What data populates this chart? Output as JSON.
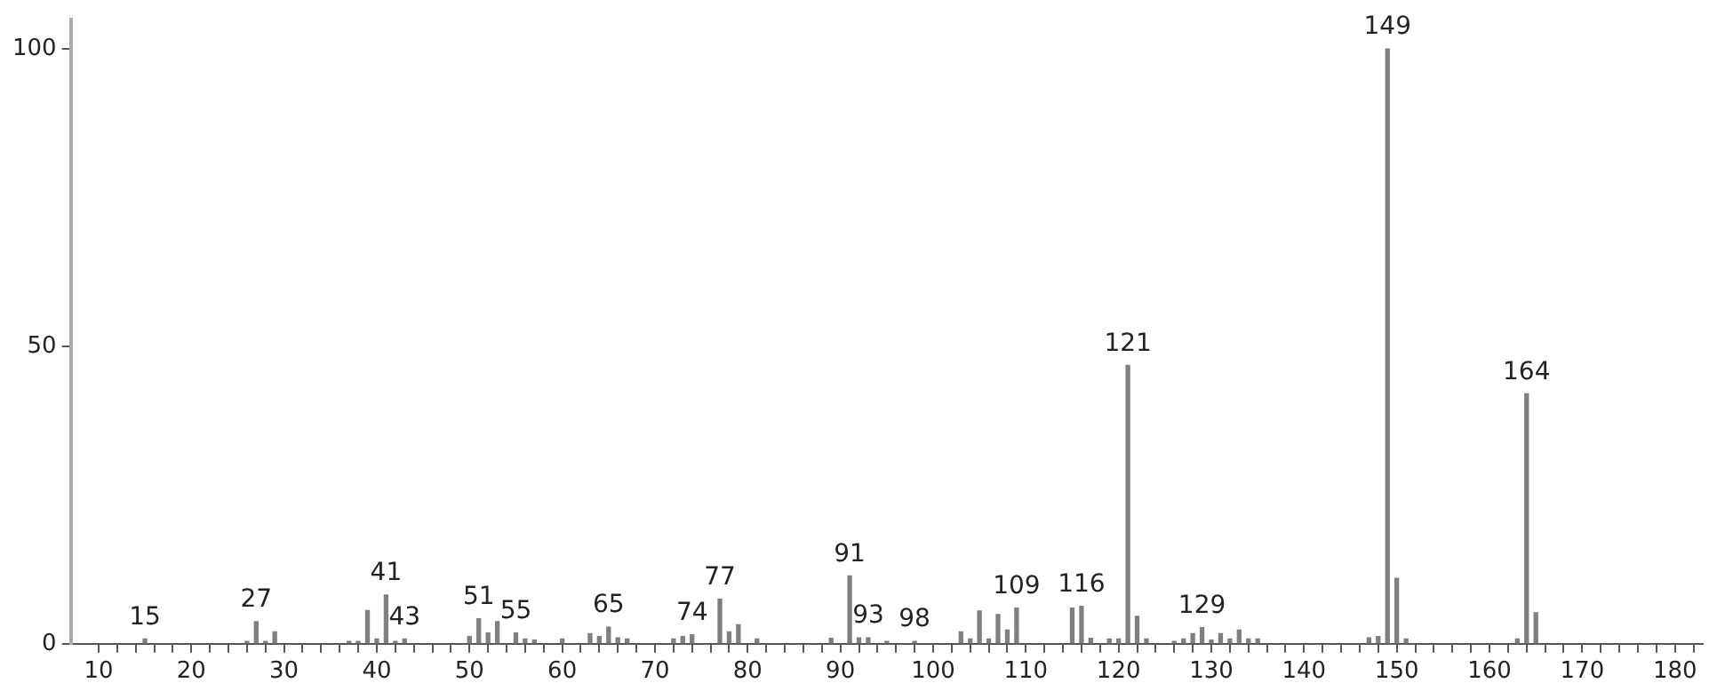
{
  "chart_data": {
    "type": "bar",
    "color": "#7f7f7f",
    "x": [
      15,
      26,
      27,
      28,
      29,
      37,
      38,
      39,
      40,
      41,
      42,
      43,
      50,
      51,
      52,
      53,
      55,
      56,
      57,
      60,
      63,
      64,
      65,
      66,
      67,
      72,
      73,
      74,
      77,
      78,
      79,
      81,
      89,
      91,
      92,
      93,
      95,
      98,
      103,
      104,
      105,
      106,
      107,
      108,
      109,
      115,
      116,
      117,
      119,
      120,
      121,
      122,
      123,
      126,
      127,
      128,
      129,
      130,
      131,
      132,
      133,
      134,
      135,
      147,
      148,
      149,
      150,
      151,
      163,
      164,
      165
    ],
    "values": [
      0.8,
      0.4,
      3.7,
      0.4,
      2.0,
      0.4,
      0.4,
      5.6,
      0.8,
      8.2,
      0.4,
      0.8,
      1.2,
      4.2,
      1.8,
      3.7,
      1.8,
      0.8,
      0.6,
      0.8,
      1.7,
      1.2,
      2.8,
      1.0,
      0.8,
      0.8,
      1.2,
      1.5,
      7.5,
      2.0,
      3.2,
      0.8,
      0.9,
      11.4,
      1.0,
      1.0,
      0.4,
      0.4,
      2.0,
      0.8,
      5.5,
      0.8,
      4.9,
      2.3,
      6.0,
      6.0,
      6.3,
      0.9,
      0.8,
      0.8,
      46.8,
      4.6,
      0.8,
      0.4,
      0.8,
      1.7,
      2.7,
      0.6,
      1.7,
      0.8,
      2.3,
      0.8,
      0.8,
      1.0,
      1.2,
      100,
      11.0,
      0.8,
      0.8,
      42.0,
      5.2
    ],
    "xlim": [
      7,
      183
    ],
    "xticks": [
      10,
      {
        "value": 12,
        "label": null
      },
      {
        "value": 14,
        "label": null
      },
      {
        "value": 16,
        "label": null
      },
      {
        "value": 18,
        "label": null
      },
      20,
      {
        "value": 22,
        "label": null
      },
      {
        "value": 24,
        "label": null
      },
      {
        "value": 26,
        "label": null
      },
      {
        "value": 28,
        "label": null
      },
      30,
      {
        "value": 32,
        "label": null
      },
      {
        "value": 34,
        "label": null
      },
      {
        "value": 36,
        "label": null
      },
      {
        "value": 38,
        "label": null
      },
      40,
      {
        "value": 42,
        "label": null
      },
      {
        "value": 44,
        "label": null
      },
      {
        "value": 46,
        "label": null
      },
      {
        "value": 48,
        "label": null
      },
      50,
      {
        "value": 52,
        "label": null
      },
      {
        "value": 54,
        "label": null
      },
      {
        "value": 56,
        "label": null
      },
      {
        "value": 58,
        "label": null
      },
      60,
      {
        "value": 62,
        "label": null
      },
      {
        "value": 64,
        "label": null
      },
      {
        "value": 66,
        "label": null
      },
      {
        "value": 68,
        "label": null
      },
      70,
      {
        "value": 72,
        "label": null
      },
      {
        "value": 74,
        "label": null
      },
      {
        "value": 76,
        "label": null
      },
      {
        "value": 78,
        "label": null
      },
      80,
      {
        "value": 82,
        "label": null
      },
      {
        "value": 84,
        "label": null
      },
      {
        "value": 86,
        "label": null
      },
      {
        "value": 88,
        "label": null
      },
      90,
      {
        "value": 92,
        "label": null
      },
      {
        "value": 94,
        "label": null
      },
      {
        "value": 96,
        "label": null
      },
      {
        "value": 98,
        "label": null
      },
      100,
      {
        "value": 102,
        "label": null
      },
      {
        "value": 104,
        "label": null
      },
      {
        "value": 106,
        "label": null
      },
      {
        "value": 108,
        "label": null
      },
      110,
      {
        "value": 112,
        "label": null
      },
      {
        "value": 114,
        "label": null
      },
      {
        "value": 116,
        "label": null
      },
      {
        "value": 118,
        "label": null
      },
      120,
      {
        "value": 122,
        "label": null
      },
      {
        "value": 124,
        "label": null
      },
      {
        "value": 126,
        "label": null
      },
      {
        "value": 128,
        "label": null
      },
      130,
      {
        "value": 132,
        "label": null
      },
      {
        "value": 134,
        "label": null
      },
      {
        "value": 136,
        "label": null
      },
      {
        "value": 138,
        "label": null
      },
      140,
      {
        "value": 142,
        "label": null
      },
      {
        "value": 144,
        "label": null
      },
      {
        "value": 146,
        "label": null
      },
      {
        "value": 148,
        "label": null
      },
      150,
      {
        "value": 152,
        "label": null
      },
      {
        "value": 154,
        "label": null
      },
      {
        "value": 156,
        "label": null
      },
      {
        "value": 158,
        "label": null
      },
      160,
      {
        "value": 162,
        "label": null
      },
      {
        "value": 164,
        "label": null
      },
      {
        "value": 166,
        "label": null
      },
      {
        "value": 168,
        "label": null
      },
      170,
      {
        "value": 172,
        "label": null
      },
      {
        "value": 174,
        "label": null
      },
      {
        "value": 176,
        "label": null
      },
      {
        "value": 178,
        "label": null
      },
      180,
      {
        "value": 182,
        "label": null
      }
    ],
    "ylim": [
      0,
      105
    ],
    "yticks": [
      0,
      50,
      100
    ],
    "grid": false,
    "legend": false,
    "annotations": [
      {
        "text": "15",
        "x": 15,
        "y": 0.8
      },
      {
        "text": "27",
        "x": 27,
        "y": 3.7
      },
      {
        "text": "41",
        "x": 41,
        "y": 8.2
      },
      {
        "text": "43",
        "x": 43,
        "y": 0.8
      },
      {
        "text": "51",
        "x": 51,
        "y": 4.2
      },
      {
        "text": "55",
        "x": 55,
        "y": 1.8
      },
      {
        "text": "65",
        "x": 65,
        "y": 2.8
      },
      {
        "text": "74",
        "x": 74,
        "y": 1.5
      },
      {
        "text": "77",
        "x": 77,
        "y": 7.5
      },
      {
        "text": "91",
        "x": 91,
        "y": 11.4
      },
      {
        "text": "93",
        "x": 93,
        "y": 1.0
      },
      {
        "text": "98",
        "x": 98,
        "y": 0.4
      },
      {
        "text": "109",
        "x": 109,
        "y": 6.0
      },
      {
        "text": "116",
        "x": 116,
        "y": 6.3
      },
      {
        "text": "121",
        "x": 121,
        "y": 46.8
      },
      {
        "text": "129",
        "x": 129,
        "y": 2.7
      },
      {
        "text": "149",
        "x": 149,
        "y": 100
      },
      {
        "text": "164",
        "x": 164,
        "y": 42.0
      }
    ]
  }
}
